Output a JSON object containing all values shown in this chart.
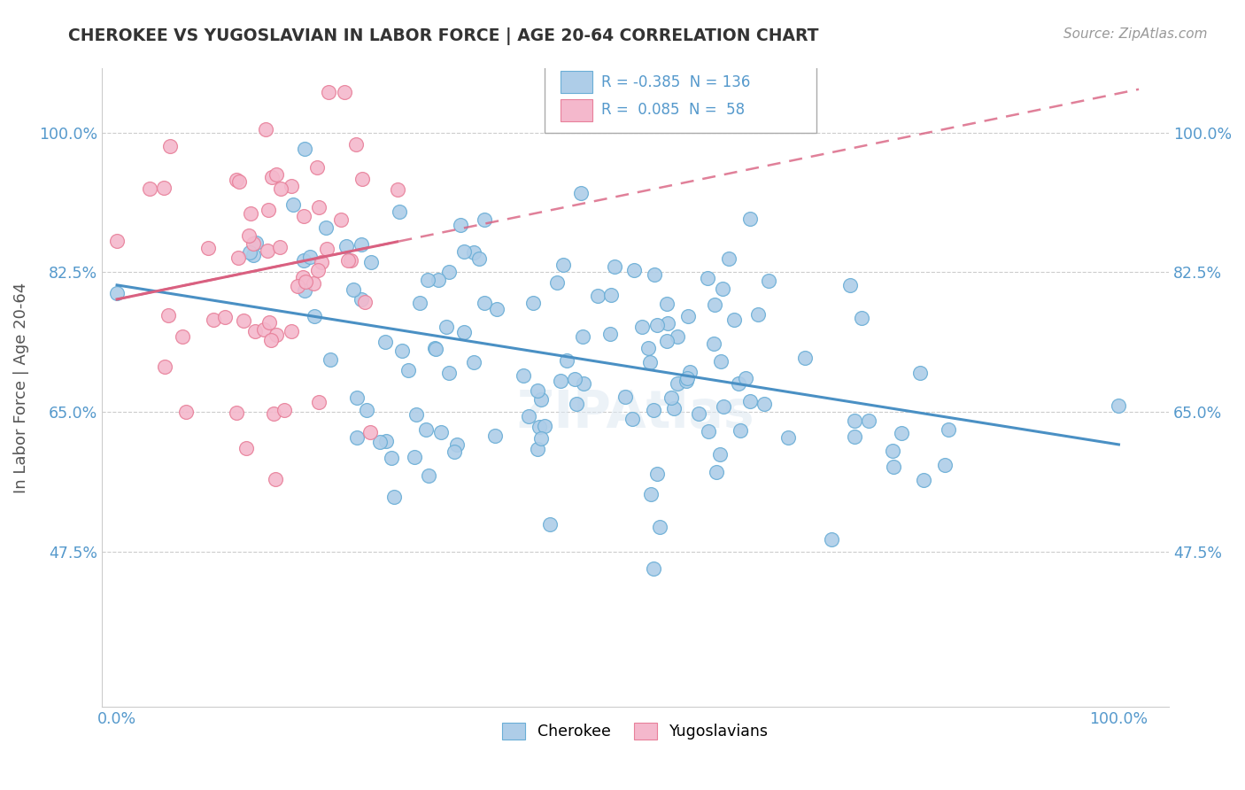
{
  "title": "CHEROKEE VS YUGOSLAVIAN IN LABOR FORCE | AGE 20-64 CORRELATION CHART",
  "source": "Source: ZipAtlas.com",
  "ylabel": "In Labor Force | Age 20-64",
  "ytick_vals": [
    0.475,
    0.65,
    0.825,
    1.0
  ],
  "ytick_labels": [
    "47.5%",
    "65.0%",
    "82.5%",
    "100.0%"
  ],
  "blue_R": -0.385,
  "blue_N": 136,
  "pink_R": 0.085,
  "pink_N": 58,
  "blue_color": "#aecde8",
  "blue_edge_color": "#6aaed6",
  "blue_line_color": "#4a90c4",
  "pink_color": "#f4b8cc",
  "pink_edge_color": "#e8809a",
  "pink_line_color": "#d96080",
  "background_color": "#ffffff",
  "grid_color": "#cccccc",
  "text_color": "#555555",
  "tick_color": "#5599cc",
  "watermark": "ZIPAtlas",
  "blue_seed": 7,
  "pink_seed": 13
}
